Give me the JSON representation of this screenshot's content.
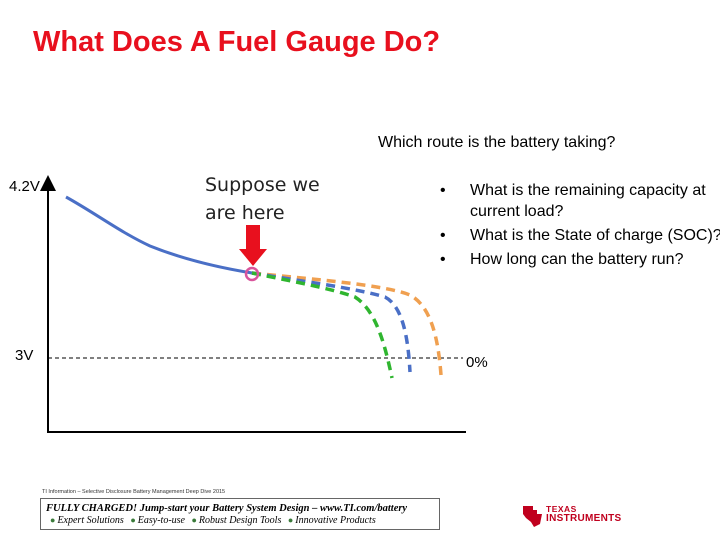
{
  "slide": {
    "title": "What Does A Fuel Gauge Do?",
    "question": "Which route is the battery taking?",
    "y_label_top": "4.2V",
    "y_label_bottom": "3V",
    "zero_label": "0%",
    "annotation": "Suppose we are here",
    "bullets": [
      "What is the remaining capacity at current load?",
      "What is the State of charge (SOC)?",
      "How long can the battery run?"
    ],
    "bullet_symbol": "•"
  },
  "colors": {
    "title": "#e8101e",
    "curve_main": "#4a6fc6",
    "curve_orange": "#f0a050",
    "curve_blue": "#4a6fc6",
    "curve_green": "#2fb52f",
    "arrow": "#e8101e",
    "marker": "#d9559c"
  },
  "footer": {
    "note": "TI Information – Selective Disclosure  Battery Management Deep Dive 2015",
    "headline": "FULLY CHARGED! Jump-start your Battery System Design – www.TI.com/battery",
    "tags": [
      "Expert Solutions",
      "Easy-to-use",
      "Robust Design Tools",
      "Innovative Products"
    ],
    "logo_line1": "TEXAS",
    "logo_line2": "INSTRUMENTS"
  }
}
